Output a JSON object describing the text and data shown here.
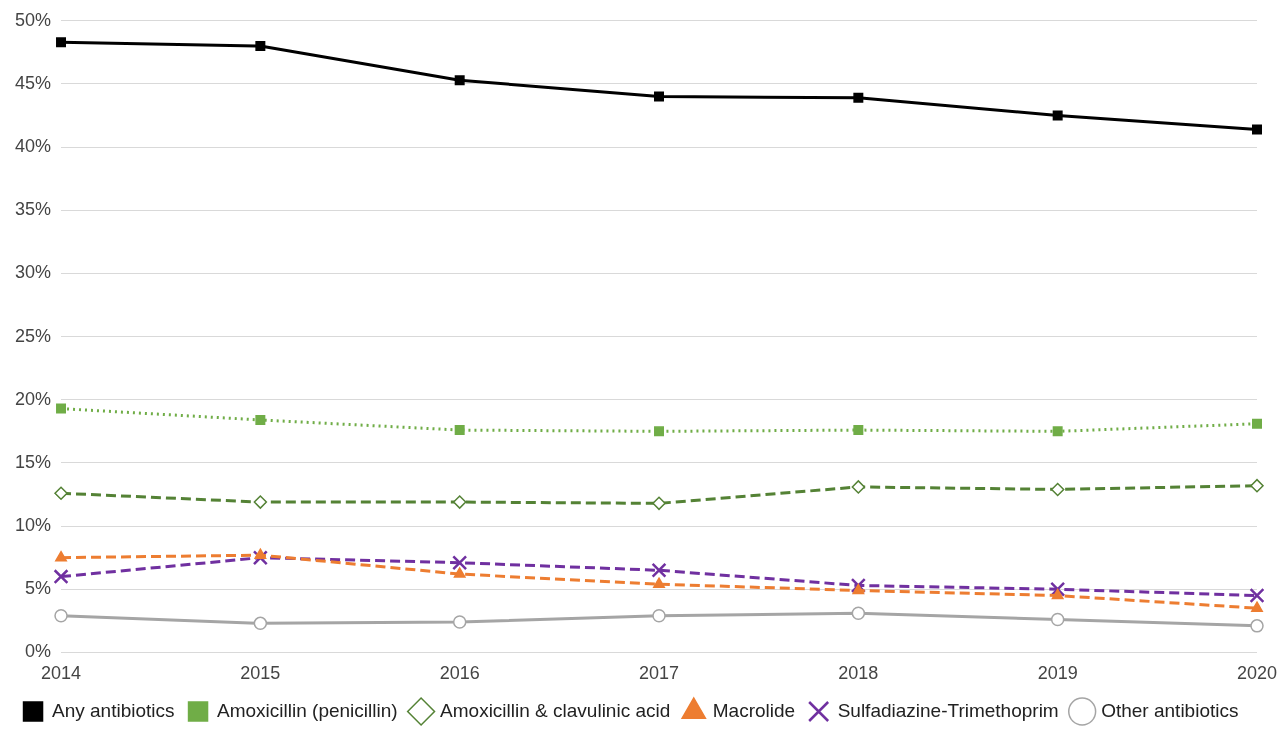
{
  "chart_data": {
    "type": "line",
    "categories": [
      "2014",
      "2015",
      "2016",
      "2017",
      "2018",
      "2019",
      "2020"
    ],
    "ylim": [
      0,
      50
    ],
    "yticks": [
      {
        "value": 0,
        "label": "0%"
      },
      {
        "value": 5,
        "label": "5%"
      },
      {
        "value": 10,
        "label": "10%"
      },
      {
        "value": 15,
        "label": "15%"
      },
      {
        "value": 20,
        "label": "20%"
      },
      {
        "value": 25,
        "label": "25%"
      },
      {
        "value": 30,
        "label": "30%"
      },
      {
        "value": 35,
        "label": "35%"
      },
      {
        "value": 40,
        "label": "40%"
      },
      {
        "value": 45,
        "label": "45%"
      },
      {
        "value": 50,
        "label": "50%"
      }
    ],
    "grid": "y",
    "legend": "bottom",
    "series": [
      {
        "name": "Any antibiotics",
        "color": "#000000",
        "marker": "square",
        "line_style": "solid",
        "values": [
          48.3,
          48.0,
          45.3,
          44.0,
          43.9,
          42.5,
          41.4
        ]
      },
      {
        "name": "Amoxicillin (penicillin)",
        "color": "#70ad47",
        "marker": "square",
        "line_style": "dotted",
        "values": [
          19.3,
          18.4,
          17.6,
          17.5,
          17.6,
          17.5,
          18.1
        ]
      },
      {
        "name": "Amoxicillin & clavulinic acid",
        "color": "#548235",
        "marker": "diamond",
        "line_style": "dashed",
        "values": [
          12.6,
          11.9,
          11.9,
          11.8,
          13.1,
          12.9,
          13.2
        ]
      },
      {
        "name": "Macrolide",
        "color": "#ed7d31",
        "marker": "triangle",
        "line_style": "dashed",
        "values": [
          7.5,
          7.7,
          6.2,
          5.4,
          4.9,
          4.5,
          3.5
        ]
      },
      {
        "name": "Sulfadiazine-Trimethoprim",
        "color": "#7030a0",
        "marker": "cross",
        "line_style": "dashed",
        "values": [
          6.0,
          7.5,
          7.1,
          6.5,
          5.3,
          5.0,
          4.5
        ]
      },
      {
        "name": "Other antibiotics",
        "color": "#a5a5a5",
        "marker": "circle",
        "line_style": "solid",
        "values": [
          2.9,
          2.3,
          2.4,
          2.9,
          3.1,
          2.6,
          2.1
        ]
      }
    ]
  }
}
